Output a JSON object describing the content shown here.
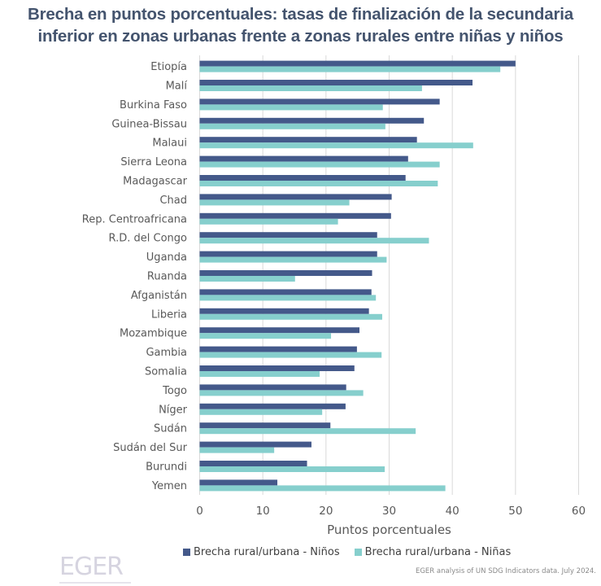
{
  "title": {
    "line1": "Brecha en puntos porcentuales: tasas de finalización de la secundaria",
    "line2": "inferior en zonas urbanas frente a zonas rurales entre niñas y niños"
  },
  "chart_data": {
    "type": "bar",
    "orientation": "horizontal",
    "title": "Brecha en puntos porcentuales: tasas de finalización de la secundaria inferior en zonas urbanas frente a zonas rurales entre niñas y niños",
    "xlabel": "Puntos porcentuales",
    "ylabel": "",
    "xlim": [
      0,
      60
    ],
    "xticks": [
      "0",
      "10",
      "20",
      "30",
      "40",
      "50",
      "60"
    ],
    "grid": true,
    "legend_position": "bottom",
    "categories": [
      "Etiopía",
      "Malí",
      "Burkina Faso",
      "Guinea-Bissau",
      "Malaui",
      "Sierra Leona",
      "Madagascar",
      "Chad",
      "Rep. Centroafricana",
      "R.D. del Congo",
      "Uganda",
      "Ruanda",
      "Afganistán",
      "Liberia",
      "Mozambique",
      "Gambia",
      "Somalia",
      "Togo",
      "Níger",
      "Sudán",
      "Sudán del Sur",
      "Burundi",
      "Yemen"
    ],
    "series": [
      {
        "name": "Brecha rural/urbana - Niños",
        "color": "#44598a",
        "values": [
          50.0,
          43.2,
          38.0,
          35.5,
          34.4,
          33.0,
          32.6,
          30.4,
          30.3,
          28.1,
          28.1,
          27.3,
          27.2,
          26.8,
          25.3,
          24.9,
          24.5,
          23.2,
          23.1,
          20.7,
          17.7,
          17.0,
          12.3
        ]
      },
      {
        "name": "Brecha rural/urbana - Niñas",
        "color": "#86cfcd",
        "values": [
          47.6,
          35.2,
          29.0,
          29.4,
          43.3,
          38.0,
          37.7,
          23.7,
          21.9,
          36.3,
          29.6,
          15.1,
          27.9,
          28.9,
          20.8,
          28.8,
          19.0,
          25.9,
          19.4,
          34.2,
          11.8,
          29.3,
          38.9
        ]
      }
    ]
  },
  "legend": {
    "items": [
      {
        "label": "Brecha rural/urbana - Niños",
        "color": "#44598a"
      },
      {
        "label": "Brecha rural/urbana - Niñas",
        "color": "#86cfcd"
      }
    ]
  },
  "footer": {
    "source": "EGER analysis of UN SDG Indicators data. July 2024.",
    "logo_text": "EGER"
  }
}
